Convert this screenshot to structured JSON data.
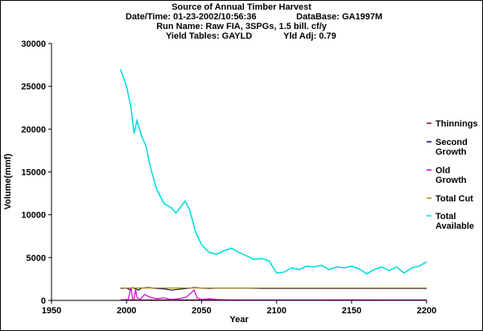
{
  "header": {
    "title": "Source of Annual Timber Harvest",
    "datetime_label": "Date/Time: 01-23-2002/10:56:36",
    "database_label": "DataBase: GA1997M",
    "run_name_label": "Run Name: Raw FIA, 3SPGs, 1.5 bill. cf/y",
    "yield_tables_label": "Yield Tables: GAYLD",
    "yld_adj_label": "Yld Adj: 0.79"
  },
  "chart_data": {
    "type": "line",
    "title": "Source of Annual Timber Harvest",
    "xlabel": "Year",
    "ylabel": "Volume(mmf)",
    "xlim": [
      1950,
      2200
    ],
    "ylim": [
      0,
      30000
    ],
    "x_ticks": [
      1950,
      2000,
      2050,
      2100,
      2150,
      2200
    ],
    "y_ticks": [
      0,
      5000,
      10000,
      15000,
      20000,
      25000,
      30000
    ],
    "grid": false,
    "legend_position": "right",
    "series": [
      {
        "name": "Thinnings",
        "color": "#8b0045",
        "points": [
          [
            1996,
            50
          ],
          [
            2050,
            60
          ],
          [
            2100,
            50
          ],
          [
            2150,
            60
          ],
          [
            2200,
            50
          ]
        ]
      },
      {
        "name": "Second Growth",
        "color": "#00008b",
        "points": [
          [
            1996,
            1400
          ],
          [
            2000,
            1450
          ],
          [
            2002,
            1250
          ],
          [
            2004,
            1500
          ],
          [
            2006,
            1350
          ],
          [
            2008,
            1200
          ],
          [
            2010,
            1450
          ],
          [
            2015,
            1500
          ],
          [
            2020,
            1400
          ],
          [
            2025,
            1350
          ],
          [
            2030,
            1200
          ],
          [
            2035,
            1300
          ],
          [
            2040,
            1400
          ],
          [
            2045,
            1500
          ],
          [
            2050,
            1450
          ],
          [
            2055,
            1400
          ],
          [
            2060,
            1450
          ],
          [
            2070,
            1450
          ],
          [
            2080,
            1450
          ],
          [
            2090,
            1400
          ],
          [
            2100,
            1400
          ],
          [
            2110,
            1400
          ],
          [
            2120,
            1400
          ],
          [
            2130,
            1400
          ],
          [
            2140,
            1400
          ],
          [
            2150,
            1400
          ],
          [
            2160,
            1400
          ],
          [
            2170,
            1400
          ],
          [
            2180,
            1400
          ],
          [
            2190,
            1400
          ],
          [
            2200,
            1400
          ]
        ]
      },
      {
        "name": "Old Growth",
        "color": "#cc00cc",
        "points": [
          [
            1996,
            50
          ],
          [
            2001,
            100
          ],
          [
            2003,
            1500
          ],
          [
            2004,
            200
          ],
          [
            2005,
            50
          ],
          [
            2006,
            1300
          ],
          [
            2007,
            300
          ],
          [
            2009,
            100
          ],
          [
            2012,
            700
          ],
          [
            2015,
            400
          ],
          [
            2020,
            200
          ],
          [
            2025,
            300
          ],
          [
            2030,
            100
          ],
          [
            2035,
            200
          ],
          [
            2040,
            400
          ],
          [
            2045,
            1200
          ],
          [
            2047,
            300
          ],
          [
            2050,
            100
          ],
          [
            2055,
            200
          ],
          [
            2060,
            100
          ],
          [
            2070,
            50
          ],
          [
            2100,
            50
          ],
          [
            2150,
            50
          ],
          [
            2200,
            50
          ]
        ]
      },
      {
        "name": "Total Cut",
        "color": "#b8860b",
        "points": [
          [
            1996,
            1450
          ],
          [
            2200,
            1450
          ]
        ]
      },
      {
        "name": "Total Available",
        "color": "#00dddd",
        "points": [
          [
            1996,
            27000
          ],
          [
            2000,
            25000
          ],
          [
            2003,
            22500
          ],
          [
            2005,
            19500
          ],
          [
            2007,
            21000
          ],
          [
            2010,
            19200
          ],
          [
            2013,
            18000
          ],
          [
            2016,
            15500
          ],
          [
            2020,
            13000
          ],
          [
            2025,
            11300
          ],
          [
            2030,
            10800
          ],
          [
            2033,
            10200
          ],
          [
            2036,
            10900
          ],
          [
            2039,
            11600
          ],
          [
            2042,
            10600
          ],
          [
            2046,
            8000
          ],
          [
            2050,
            6500
          ],
          [
            2055,
            5600
          ],
          [
            2060,
            5400
          ],
          [
            2065,
            5800
          ],
          [
            2070,
            6100
          ],
          [
            2075,
            5600
          ],
          [
            2080,
            5200
          ],
          [
            2085,
            4800
          ],
          [
            2090,
            4900
          ],
          [
            2095,
            4600
          ],
          [
            2100,
            3200
          ],
          [
            2105,
            3300
          ],
          [
            2110,
            3800
          ],
          [
            2115,
            3600
          ],
          [
            2120,
            4000
          ],
          [
            2125,
            3900
          ],
          [
            2130,
            4100
          ],
          [
            2135,
            3600
          ],
          [
            2140,
            3900
          ],
          [
            2145,
            3800
          ],
          [
            2150,
            4000
          ],
          [
            2155,
            3700
          ],
          [
            2160,
            3100
          ],
          [
            2165,
            3600
          ],
          [
            2170,
            3900
          ],
          [
            2175,
            3500
          ],
          [
            2180,
            3900
          ],
          [
            2185,
            3200
          ],
          [
            2190,
            3800
          ],
          [
            2195,
            4000
          ],
          [
            2200,
            4500
          ]
        ]
      }
    ],
    "legend": [
      {
        "label_lines": [
          "Thinnings"
        ],
        "color": "#8b0045"
      },
      {
        "label_lines": [
          "Second",
          "Growth"
        ],
        "color": "#00008b"
      },
      {
        "label_lines": [
          "Old",
          "Growth"
        ],
        "color": "#cc00cc"
      },
      {
        "label_lines": [
          "Total Cut"
        ],
        "color": "#b8860b"
      },
      {
        "label_lines": [
          "Total",
          "Available"
        ],
        "color": "#00dddd"
      }
    ]
  }
}
